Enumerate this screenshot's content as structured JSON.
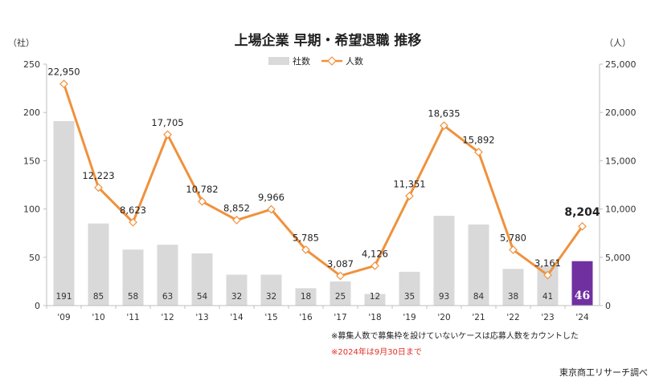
{
  "chart_data": {
    "type": "bar+line",
    "title": "上場企業 早期・希望退職 推移",
    "y_left_unit": "（社）",
    "y_right_unit": "（人）",
    "categories": [
      "'09",
      "'10",
      "'11",
      "'12",
      "'13",
      "'14",
      "'15",
      "'16",
      "'17",
      "'18",
      "'19",
      "'20",
      "'21",
      "'22",
      "'23",
      "'24"
    ],
    "series": [
      {
        "name": "社数",
        "chart": "bar",
        "axis": "left",
        "values": [
          191,
          85,
          58,
          63,
          54,
          32,
          32,
          18,
          25,
          12,
          35,
          93,
          84,
          38,
          41,
          46
        ],
        "labels": [
          "191",
          "85",
          "58",
          "63",
          "54",
          "32",
          "32",
          "18",
          "25",
          "12",
          "35",
          "93",
          "84",
          "38",
          "41",
          "46"
        ]
      },
      {
        "name": "人数",
        "chart": "line",
        "axis": "right",
        "values": [
          22950,
          12223,
          8623,
          17705,
          10782,
          8852,
          9966,
          5785,
          3087,
          4126,
          11351,
          18635,
          15892,
          5780,
          3161,
          8204
        ],
        "labels": [
          "22,950",
          "12,223",
          "8,623",
          "17,705",
          "10,782",
          "8,852",
          "9,966",
          "5,785",
          "3,087",
          "4,126",
          "11,351",
          "18,635",
          "15,892",
          "5,780",
          "3,161",
          "8,204"
        ]
      }
    ],
    "y_left": {
      "min": 0,
      "max": 250,
      "ticks": [
        "0",
        "50",
        "100",
        "150",
        "200",
        "250"
      ]
    },
    "y_right": {
      "min": 0,
      "max": 25000,
      "ticks": [
        "0",
        "5,000",
        "10,000",
        "15,000",
        "20,000",
        "25,000"
      ]
    },
    "grid": false,
    "legend_position": "top-center",
    "colors": {
      "bar": "#d9d9d9",
      "bar_highlight": "#7030a0",
      "line": "#f0913c",
      "marker_fill": "#ffffff",
      "axis": "#bfbfbf"
    },
    "notes": [
      "※募集人数で募集枠を設けていないケースは応募人数をカウントした",
      "※2024年は9月30日まで"
    ],
    "source": "東京商工リサーチ調べ"
  }
}
